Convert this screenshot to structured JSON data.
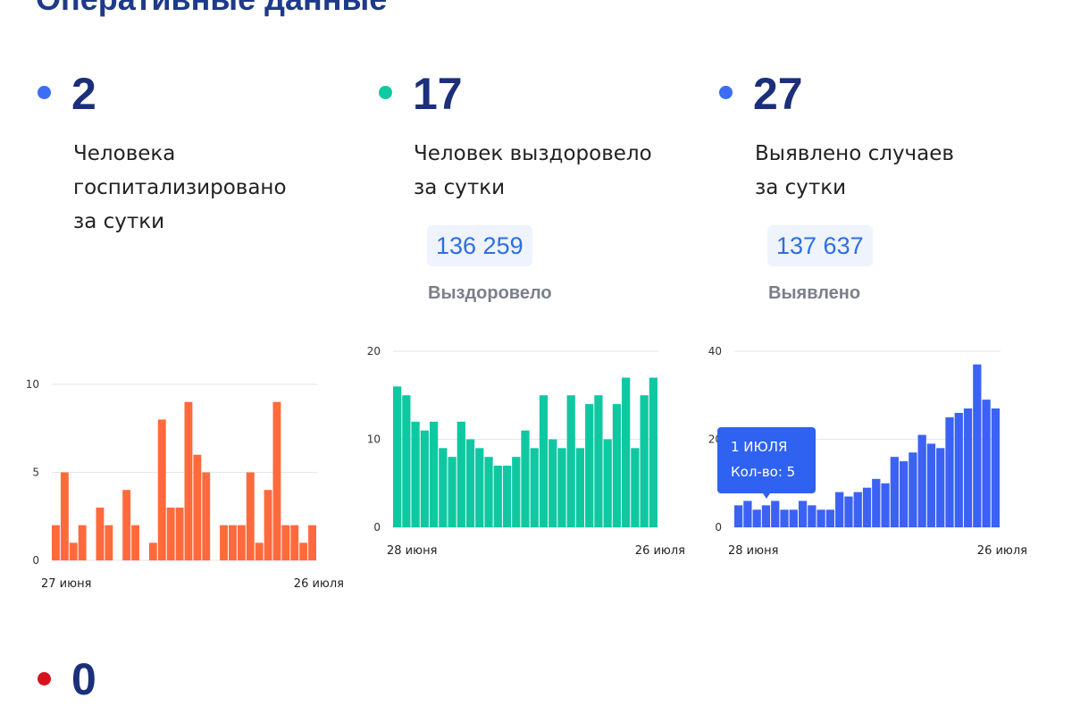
{
  "page": {
    "title": "Оперативные данные"
  },
  "stats": [
    {
      "value": "2",
      "dot_color": "#3b6ef5",
      "lines": [
        "Человека",
        "госпитализировано",
        "за сутки"
      ]
    },
    {
      "value": "17",
      "dot_color": "#10c9a0",
      "lines": [
        "Человек выздоровело",
        "за сутки"
      ],
      "total": "136 259",
      "total_label": "Выздоровело"
    },
    {
      "value": "27",
      "dot_color": "#3b6ef5",
      "lines": [
        "Выявлено случаев",
        "за сутки"
      ],
      "total": "137 637",
      "total_label": "Выявлено"
    },
    {
      "value": "0",
      "dot_color": "#d8121c"
    }
  ],
  "tooltip": {
    "date": "1 ИЮЛЯ",
    "count": "Кол-во: 5"
  },
  "chart_data": [
    {
      "type": "bar",
      "color": "#ff6a3d",
      "x_start_label": "27 июня",
      "x_end_label": "26 июля",
      "y_ticks": [
        "0",
        "5",
        "10"
      ],
      "ylim": [
        0,
        10
      ],
      "values": [
        2,
        5,
        1,
        2,
        0,
        3,
        2,
        0,
        4,
        2,
        0,
        1,
        8,
        3,
        3,
        9,
        6,
        5,
        0,
        2,
        2,
        2,
        5,
        1,
        4,
        9,
        2,
        2,
        1,
        2
      ]
    },
    {
      "type": "bar",
      "color": "#0fc8a1",
      "x_start_label": "28 июня",
      "x_end_label": "26 июля",
      "y_ticks": [
        "0",
        "10",
        "20"
      ],
      "ylim": [
        0,
        20
      ],
      "values": [
        16,
        15,
        12,
        11,
        12,
        9,
        8,
        12,
        10,
        9,
        8,
        7,
        7,
        8,
        11,
        9,
        15,
        10,
        9,
        15,
        9,
        14,
        15,
        10,
        14,
        17,
        9,
        15,
        17
      ]
    },
    {
      "type": "bar",
      "color": "#3b62f5",
      "x_start_label": "28 июня",
      "x_end_label": "26 июля",
      "y_ticks": [
        "0",
        "20",
        "40"
      ],
      "ylim": [
        0,
        40
      ],
      "values": [
        5,
        6,
        4,
        5,
        6,
        4,
        4,
        6,
        5,
        4,
        4,
        8,
        7,
        8,
        9,
        11,
        10,
        16,
        15,
        17,
        21,
        19,
        18,
        25,
        26,
        27,
        37,
        29,
        27
      ]
    }
  ]
}
